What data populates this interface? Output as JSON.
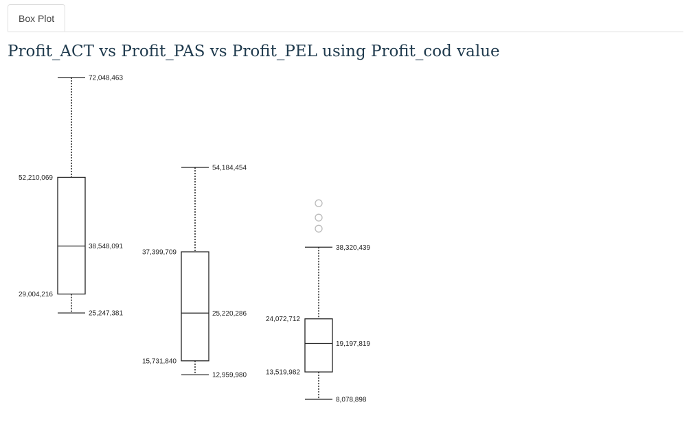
{
  "tabs": [
    {
      "label": "Box Plot"
    }
  ],
  "title": "Profit_ACT vs Profit_PAS vs Profit_PEL using Profit_cod value",
  "chart_data": {
    "type": "box",
    "title": "Profit_ACT vs Profit_PAS vs Profit_PEL using Profit_cod value",
    "ylim": [
      8078898,
      72048463
    ],
    "series": [
      {
        "name": "",
        "min": 25247381,
        "q1": 29004216,
        "median": 38548091,
        "q3": 52210069,
        "max": 72048463,
        "labels": {
          "min": "25,247,381",
          "q1": "29,004,216",
          "median": "38,548,091",
          "q3": "52,210,069",
          "max": "72,048,463"
        },
        "outliers": []
      },
      {
        "name": "",
        "min": 12959980,
        "q1": 15731840,
        "median": 25220286,
        "q3": 37399709,
        "max": 54184454,
        "labels": {
          "min": "12,959,980",
          "q1": "15,731,840",
          "median": "25,220,286",
          "q3": "37,399,709",
          "max": "54,184,454"
        },
        "outliers": []
      },
      {
        "name": "",
        "min": 8078898,
        "q1": 13519982,
        "median": 19197819,
        "q3": 24072712,
        "max": 38320439,
        "labels": {
          "min": "8,078,898",
          "q1": "13,519,982",
          "median": "19,197,819",
          "q3": "24,072,712",
          "max": "38,320,439"
        },
        "outliers": [
          47060000,
          42000000,
          44200000
        ]
      }
    ]
  }
}
